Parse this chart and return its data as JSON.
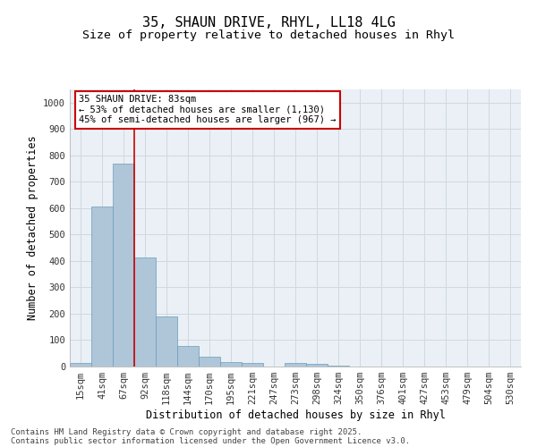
{
  "title": "35, SHAUN DRIVE, RHYL, LL18 4LG",
  "subtitle": "Size of property relative to detached houses in Rhyl",
  "xlabel": "Distribution of detached houses by size in Rhyl",
  "ylabel": "Number of detached properties",
  "categories": [
    "15sqm",
    "41sqm",
    "67sqm",
    "92sqm",
    "118sqm",
    "144sqm",
    "170sqm",
    "195sqm",
    "221sqm",
    "247sqm",
    "273sqm",
    "298sqm",
    "324sqm",
    "350sqm",
    "376sqm",
    "401sqm",
    "427sqm",
    "453sqm",
    "479sqm",
    "504sqm",
    "530sqm"
  ],
  "values": [
    13,
    605,
    770,
    413,
    190,
    78,
    37,
    18,
    13,
    0,
    12,
    10,
    5,
    0,
    0,
    0,
    0,
    0,
    0,
    0,
    0
  ],
  "bar_color": "#aec6d8",
  "bar_edge_color": "#6a9dba",
  "grid_color": "#d0d8e0",
  "background_color": "#eaf0f6",
  "vline_color": "#cc0000",
  "annotation_text": "35 SHAUN DRIVE: 83sqm\n← 53% of detached houses are smaller (1,130)\n45% of semi-detached houses are larger (967) →",
  "annotation_box_color": "#cc0000",
  "ylim": [
    0,
    1050
  ],
  "yticks": [
    0,
    100,
    200,
    300,
    400,
    500,
    600,
    700,
    800,
    900,
    1000
  ],
  "footer1": "Contains HM Land Registry data © Crown copyright and database right 2025.",
  "footer2": "Contains public sector information licensed under the Open Government Licence v3.0.",
  "title_fontsize": 11,
  "subtitle_fontsize": 9.5,
  "axis_label_fontsize": 8.5,
  "tick_fontsize": 7.5,
  "annotation_fontsize": 7.5,
  "footer_fontsize": 6.5,
  "vline_bar_index": 2.5
}
